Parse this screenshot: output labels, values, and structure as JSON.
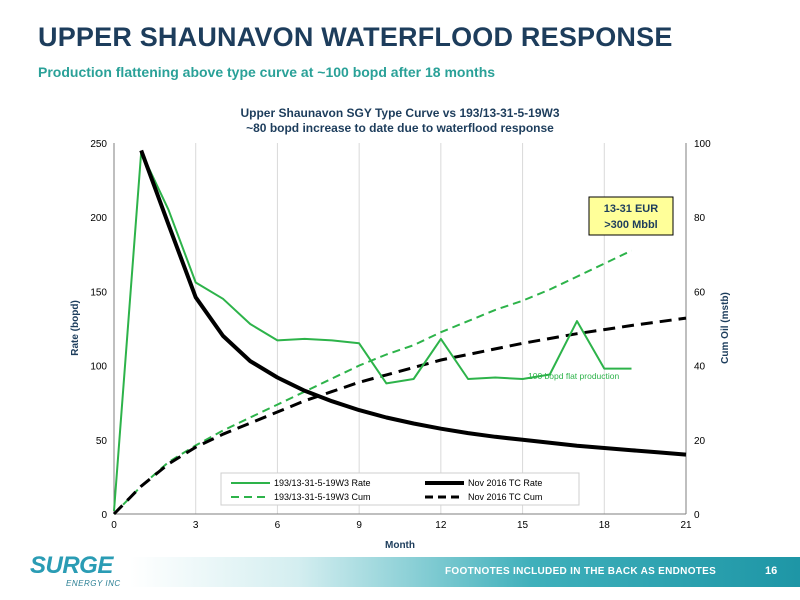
{
  "slide": {
    "title": "UPPER SHAUNAVON WATERFLOOD RESPONSE",
    "subtitle": "Production flattening above type curve at ~100 bopd after 18 months"
  },
  "footer": {
    "note": "FOOTNOTES INCLUDED IN THE BACK AS ENDNOTES",
    "page": "16",
    "logo": "SURGE",
    "logo_sub": "ENERGY INC"
  },
  "colors": {
    "green": "#2db34a",
    "black": "#000000",
    "title": "#1d3d5c",
    "subtitle": "#2aa198",
    "callout_bg": "#ffff99"
  },
  "chart_data": {
    "type": "line",
    "title": "Upper Shaunavon SGY Type Curve vs 193/13-31-5-19W3",
    "subtitle": "~80 bopd increase to date due to waterflood response",
    "xlabel": "Month",
    "ylabel": "Rate (bopd)",
    "y2label": "Cum Oil (mstb)",
    "xlim": [
      0,
      21
    ],
    "ylim": [
      0,
      250
    ],
    "y2lim": [
      0,
      100
    ],
    "xticks": [
      0,
      3,
      6,
      9,
      12,
      15,
      18,
      21
    ],
    "yticks": [
      0,
      50,
      100,
      150,
      200,
      250
    ],
    "y2ticks": [
      0,
      20,
      40,
      60,
      80,
      100
    ],
    "grid": "vertical",
    "legend_position": "bottom-center",
    "callout": [
      "13-31 EUR",
      ">300 Mbbl"
    ],
    "annotation": {
      "text": "100 bopd flat production",
      "x": 15.2,
      "y": 93
    },
    "series": [
      {
        "name": "193/13-31-5-19W3 Rate",
        "axis": "left",
        "color": "#2db34a",
        "dash": "solid",
        "width": 2,
        "x": [
          0,
          1,
          2,
          3,
          4,
          5,
          6,
          7,
          8,
          9,
          10,
          11,
          12,
          13,
          14,
          15,
          16,
          17,
          18,
          19
        ],
        "y": [
          2,
          244,
          205,
          156,
          145,
          128,
          117,
          118,
          117,
          115,
          88,
          91,
          118,
          91,
          92,
          91,
          94,
          130,
          98,
          98
        ]
      },
      {
        "name": "193/13-31-5-19W3 Cum",
        "axis": "right",
        "color": "#2db34a",
        "dash": "dashed",
        "width": 2,
        "x": [
          0,
          1,
          2,
          3,
          4,
          5,
          6,
          7,
          8,
          9,
          10,
          11,
          12,
          13,
          14,
          15,
          16,
          17,
          18,
          19
        ],
        "y": [
          0,
          7.5,
          14,
          18.5,
          22.5,
          26,
          29.5,
          33,
          36.5,
          40,
          43,
          45.5,
          49,
          52,
          55,
          57.5,
          60.5,
          64,
          67.5,
          71
        ]
      },
      {
        "name": "Nov 2016 TC Rate",
        "axis": "left",
        "color": "#000000",
        "dash": "solid",
        "width": 4,
        "x": [
          1,
          2,
          3,
          4,
          5,
          6,
          7,
          8,
          9,
          10,
          11,
          12,
          13,
          14,
          15,
          16,
          17,
          18,
          19,
          20,
          21
        ],
        "y": [
          245,
          195,
          146,
          120,
          103,
          92,
          83,
          76,
          70,
          65,
          61,
          57.5,
          54.5,
          52,
          50,
          48,
          46,
          44.5,
          43,
          41.5,
          40
        ]
      },
      {
        "name": "Nov 2016 TC Cum",
        "axis": "right",
        "color": "#000000",
        "dash": "dashed",
        "width": 3,
        "x": [
          0,
          1,
          2,
          3,
          4,
          5,
          6,
          7,
          8,
          9,
          10,
          11,
          12,
          13,
          14,
          15,
          16,
          17,
          18,
          19,
          20,
          21
        ],
        "y": [
          0,
          7.5,
          13.5,
          18,
          21.5,
          24.5,
          27.5,
          30.5,
          33,
          35.5,
          37.5,
          39.5,
          41.5,
          43,
          44.5,
          46,
          47.3,
          48.6,
          49.7,
          50.8,
          51.8,
          52.8
        ]
      }
    ]
  }
}
